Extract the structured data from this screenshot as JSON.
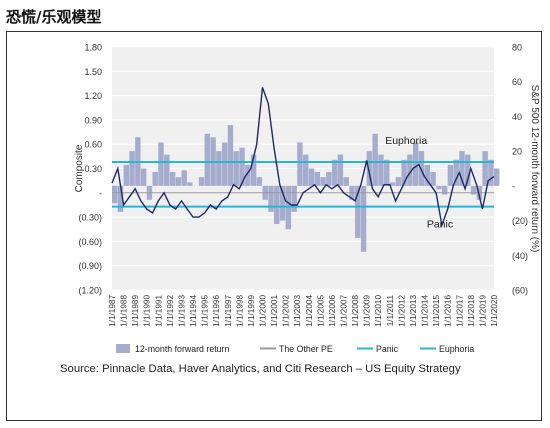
{
  "page_title": "恐慌/乐观模型",
  "source": "Source: Pinnacle Data, Haver Analytics, and Citi Research – US Equity Strategy",
  "colors": {
    "bars": "#a6accd",
    "composite": "#1f2a63",
    "threshold": "#29b6d6",
    "gridline": "#ffffff",
    "plot_bg": "#f0f0f0",
    "axis_text": "#333333",
    "zero_line": "#999999"
  },
  "chart_data": {
    "type": "bar+line",
    "ylabel": "Composite",
    "y2label": "S&P 500 12-month forward return (%)",
    "ylim": [
      -1.2,
      1.8
    ],
    "y2lim": [
      -60,
      80
    ],
    "yticks": [
      "1.80",
      "1.50",
      "1.20",
      "0.90",
      "0.60",
      "0.30",
      "-",
      "(0.30)",
      "(0.60)",
      "(0.90)",
      "(1.20)"
    ],
    "y2ticks": [
      "80",
      "60",
      "40",
      "20",
      "-",
      "(20)",
      "(40)",
      "(60)"
    ],
    "x_start": "1987-01",
    "x_end": "2020-01",
    "xticks": [
      "1/1/1987",
      "1/1/1988",
      "1/1/1989",
      "1/1/1990",
      "1/1/1991",
      "1/1/1992",
      "1/1/1993",
      "1/1/1994",
      "1/1/1995",
      "1/1/1996",
      "1/1/1997",
      "1/1/1998",
      "1/1/1999",
      "1/1/2000",
      "1/1/2001",
      "1/1/2002",
      "1/1/2003",
      "1/1/2004",
      "1/1/2005",
      "1/1/2006",
      "1/1/2007",
      "1/1/2008",
      "1/1/2009",
      "1/1/2010",
      "1/1/2011",
      "1/1/2012",
      "1/1/2013",
      "1/1/2014",
      "1/1/2015",
      "1/1/2016",
      "1/1/2017",
      "1/1/2018",
      "1/1/2019",
      "1/1/2020"
    ],
    "panic_level": -0.17,
    "euphoria_level": 0.38,
    "annotations": [
      {
        "text": "Euphoria",
        "date": "2012-06",
        "y": 0.6
      },
      {
        "text": "Panic",
        "date": "2015-05",
        "y": -0.43
      }
    ],
    "series": [
      {
        "name": "12-month forward return",
        "axis": "right",
        "kind": "bar",
        "dates": [
          "1987-01",
          "1987-07",
          "1988-01",
          "1988-07",
          "1989-01",
          "1989-07",
          "1990-01",
          "1990-07",
          "1991-01",
          "1991-07",
          "1992-01",
          "1992-07",
          "1993-01",
          "1993-07",
          "1994-01",
          "1994-07",
          "1995-01",
          "1995-07",
          "1996-01",
          "1996-07",
          "1997-01",
          "1997-07",
          "1998-01",
          "1998-07",
          "1999-01",
          "1999-07",
          "2000-01",
          "2000-07",
          "2001-01",
          "2001-07",
          "2002-01",
          "2002-07",
          "2003-01",
          "2003-07",
          "2004-01",
          "2004-07",
          "2005-01",
          "2005-07",
          "2006-01",
          "2006-07",
          "2007-01",
          "2007-07",
          "2008-01",
          "2008-07",
          "2009-01",
          "2009-07",
          "2010-01",
          "2010-07",
          "2011-01",
          "2011-07",
          "2012-01",
          "2012-07",
          "2013-01",
          "2013-07",
          "2014-01",
          "2014-07",
          "2015-01",
          "2015-07",
          "2016-01",
          "2016-07",
          "2017-01",
          "2017-07",
          "2018-01",
          "2018-07",
          "2019-01",
          "2019-07",
          "2020-01"
        ],
        "values": [
          -10,
          -15,
          12,
          20,
          28,
          10,
          -8,
          8,
          25,
          18,
          8,
          5,
          9,
          2,
          0,
          5,
          30,
          28,
          20,
          25,
          35,
          20,
          22,
          12,
          18,
          5,
          -8,
          -15,
          -22,
          -20,
          -25,
          -15,
          25,
          18,
          10,
          8,
          5,
          8,
          15,
          18,
          5,
          -8,
          -30,
          -38,
          20,
          30,
          18,
          15,
          2,
          5,
          15,
          18,
          25,
          20,
          12,
          8,
          -2,
          -5,
          12,
          15,
          20,
          18,
          -5,
          -8,
          20,
          15,
          10
        ]
      },
      {
        "name": "The Other PE",
        "axis": "left",
        "kind": "line",
        "dates": [
          "1987-01",
          "1987-07",
          "1988-01",
          "1988-07",
          "1989-01",
          "1989-07",
          "1990-01",
          "1990-07",
          "1991-01",
          "1991-07",
          "1992-01",
          "1992-07",
          "1993-01",
          "1993-07",
          "1994-01",
          "1994-07",
          "1995-01",
          "1995-07",
          "1996-01",
          "1996-07",
          "1997-01",
          "1997-07",
          "1998-01",
          "1998-07",
          "1999-01",
          "1999-07",
          "2000-01",
          "2000-07",
          "2001-01",
          "2001-07",
          "2002-01",
          "2002-07",
          "2003-01",
          "2003-07",
          "2004-01",
          "2004-07",
          "2005-01",
          "2005-07",
          "2006-01",
          "2006-07",
          "2007-01",
          "2007-07",
          "2008-01",
          "2008-07",
          "2009-01",
          "2009-07",
          "2010-01",
          "2010-07",
          "2011-01",
          "2011-07",
          "2012-01",
          "2012-07",
          "2013-01",
          "2013-07",
          "2014-01",
          "2014-07",
          "2015-01",
          "2015-07",
          "2016-01",
          "2016-07",
          "2017-01",
          "2017-07",
          "2018-01",
          "2018-07",
          "2019-01",
          "2019-07",
          "2020-01"
        ],
        "values": [
          0.12,
          0.3,
          -0.15,
          -0.05,
          0.05,
          -0.1,
          -0.2,
          -0.25,
          -0.1,
          0.0,
          -0.15,
          -0.2,
          -0.1,
          -0.2,
          -0.3,
          -0.3,
          -0.25,
          -0.15,
          -0.2,
          -0.1,
          -0.05,
          0.1,
          0.05,
          0.2,
          0.3,
          0.6,
          1.3,
          1.1,
          0.55,
          0.1,
          -0.1,
          -0.15,
          -0.15,
          0.0,
          0.05,
          0.1,
          0.0,
          0.1,
          0.05,
          0.1,
          0.0,
          -0.05,
          -0.1,
          0.1,
          0.4,
          0.05,
          -0.05,
          0.1,
          0.1,
          -0.1,
          0.05,
          0.2,
          0.3,
          0.35,
          0.2,
          0.1,
          0.0,
          -0.4,
          -0.2,
          0.1,
          0.25,
          0.05,
          0.3,
          0.1,
          -0.2,
          0.15,
          0.2
        ]
      },
      {
        "name": "Panic",
        "kind": "hline"
      },
      {
        "name": "Euphoria",
        "kind": "hline"
      }
    ]
  }
}
